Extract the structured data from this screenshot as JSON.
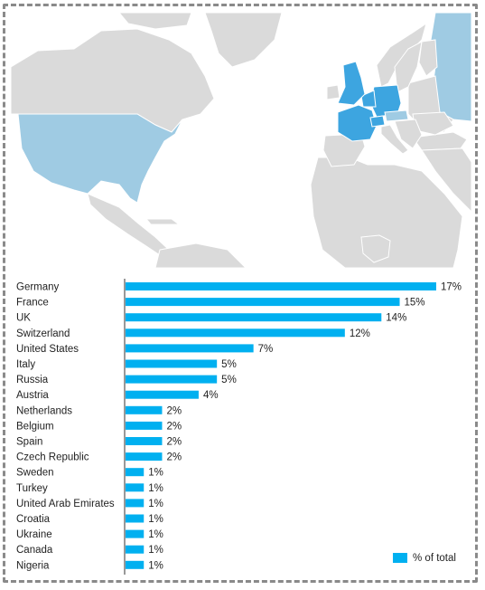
{
  "chart_data": {
    "type": "bar",
    "orientation": "horizontal",
    "categories": [
      "Germany",
      "France",
      "UK",
      "Switzerland",
      "United States",
      "Italy",
      "Russia",
      "Austria",
      "Netherlands",
      "Belgium",
      "Spain",
      "Czech Republic",
      "Sweden",
      "Turkey",
      "United Arab Emirates",
      "Croatia",
      "Ukraine",
      "Canada",
      "Nigeria"
    ],
    "values": [
      17,
      15,
      14,
      12,
      7,
      5,
      5,
      4,
      2,
      2,
      2,
      2,
      1,
      1,
      1,
      1,
      1,
      1,
      1
    ],
    "value_labels": [
      "17%",
      "15%",
      "14%",
      "12%",
      "7%",
      "5%",
      "5%",
      "4%",
      "2%",
      "2%",
      "2%",
      "2%",
      "1%",
      "1%",
      "1%",
      "1%",
      "1%",
      "1%",
      "1%"
    ],
    "series": [
      {
        "name": "% of total",
        "values": [
          17,
          15,
          14,
          12,
          7,
          5,
          5,
          4,
          2,
          2,
          2,
          2,
          1,
          1,
          1,
          1,
          1,
          1,
          1
        ]
      }
    ],
    "xlim": [
      0,
      19
    ],
    "legend": "bottom-right",
    "grid": false,
    "colors": {
      "bar": "#00b0f0",
      "axis": "#333333"
    }
  },
  "map": {
    "colors": {
      "land": "#dadada",
      "land_border": "#ffffff",
      "highlight_strong": "#3da5e0",
      "highlight_light": "#9fcbe3",
      "sea": "#ffffff"
    }
  }
}
